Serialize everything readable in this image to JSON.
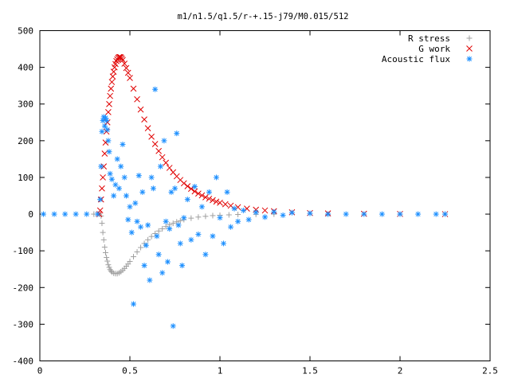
{
  "chart_data": {
    "type": "scatter",
    "title": "m1/n1.5/q1.5/r-+.15-j79/M0.015/512",
    "xlabel": "",
    "ylabel": "",
    "xlim": [
      0,
      2.5
    ],
    "ylim": [
      -400,
      500
    ],
    "xticks": [
      0,
      0.5,
      1,
      1.5,
      2,
      2.5
    ],
    "yticks": [
      -400,
      -300,
      -200,
      -100,
      0,
      100,
      200,
      300,
      400,
      500
    ],
    "xtick_labels": [
      "0",
      "0.5",
      "1",
      "1.5",
      "2",
      "2.5"
    ],
    "ytick_labels": [
      "-400",
      "-300",
      "-200",
      "-100",
      "0",
      "100",
      "200",
      "300",
      "400",
      "500"
    ],
    "grid": false,
    "legend_position": "top-right",
    "series": [
      {
        "name": "R stress",
        "marker": "plus",
        "color": "#a0a0a0",
        "points": [
          [
            0.3,
            0
          ],
          [
            0.33,
            0
          ],
          [
            0.34,
            -5
          ],
          [
            0.345,
            -25
          ],
          [
            0.35,
            -50
          ],
          [
            0.355,
            -70
          ],
          [
            0.36,
            -90
          ],
          [
            0.365,
            -105
          ],
          [
            0.37,
            -118
          ],
          [
            0.375,
            -128
          ],
          [
            0.38,
            -138
          ],
          [
            0.385,
            -145
          ],
          [
            0.39,
            -151
          ],
          [
            0.395,
            -155
          ],
          [
            0.4,
            -158
          ],
          [
            0.41,
            -161
          ],
          [
            0.42,
            -162
          ],
          [
            0.43,
            -162
          ],
          [
            0.44,
            -160
          ],
          [
            0.45,
            -157
          ],
          [
            0.46,
            -153
          ],
          [
            0.47,
            -148
          ],
          [
            0.48,
            -142
          ],
          [
            0.49,
            -136
          ],
          [
            0.5,
            -129
          ],
          [
            0.52,
            -116
          ],
          [
            0.54,
            -103
          ],
          [
            0.56,
            -91
          ],
          [
            0.58,
            -80
          ],
          [
            0.6,
            -70
          ],
          [
            0.62,
            -61
          ],
          [
            0.64,
            -53
          ],
          [
            0.66,
            -46
          ],
          [
            0.68,
            -40
          ],
          [
            0.7,
            -34
          ],
          [
            0.72,
            -29
          ],
          [
            0.74,
            -25
          ],
          [
            0.76,
            -21
          ],
          [
            0.78,
            -18
          ],
          [
            0.8,
            -15
          ],
          [
            0.84,
            -11
          ],
          [
            0.88,
            -8
          ],
          [
            0.92,
            -6
          ],
          [
            0.96,
            -4
          ],
          [
            1.0,
            -3
          ],
          [
            1.05,
            -2
          ],
          [
            1.1,
            -1
          ],
          [
            1.2,
            -0.5
          ],
          [
            1.3,
            0
          ],
          [
            1.6,
            0
          ],
          [
            2.0,
            0
          ],
          [
            2.25,
            0
          ]
        ]
      },
      {
        "name": "G work",
        "marker": "cross",
        "color": "#e00000",
        "points": [
          [
            0.33,
            0
          ],
          [
            0.335,
            10
          ],
          [
            0.34,
            40
          ],
          [
            0.345,
            70
          ],
          [
            0.35,
            100
          ],
          [
            0.355,
            130
          ],
          [
            0.36,
            165
          ],
          [
            0.365,
            195
          ],
          [
            0.37,
            225
          ],
          [
            0.375,
            250
          ],
          [
            0.38,
            278
          ],
          [
            0.385,
            300
          ],
          [
            0.39,
            322
          ],
          [
            0.395,
            342
          ],
          [
            0.4,
            360
          ],
          [
            0.405,
            375
          ],
          [
            0.41,
            388
          ],
          [
            0.415,
            400
          ],
          [
            0.42,
            409
          ],
          [
            0.425,
            417
          ],
          [
            0.43,
            422
          ],
          [
            0.435,
            426
          ],
          [
            0.44,
            428
          ],
          [
            0.445,
            428
          ],
          [
            0.45,
            427
          ],
          [
            0.455,
            424
          ],
          [
            0.46,
            420
          ],
          [
            0.47,
            410
          ],
          [
            0.48,
            398
          ],
          [
            0.49,
            385
          ],
          [
            0.5,
            371
          ],
          [
            0.52,
            342
          ],
          [
            0.54,
            313
          ],
          [
            0.56,
            285
          ],
          [
            0.58,
            258
          ],
          [
            0.6,
            234
          ],
          [
            0.62,
            211
          ],
          [
            0.64,
            191
          ],
          [
            0.66,
            172
          ],
          [
            0.68,
            155
          ],
          [
            0.7,
            140
          ],
          [
            0.72,
            126
          ],
          [
            0.74,
            114
          ],
          [
            0.76,
            103
          ],
          [
            0.78,
            93
          ],
          [
            0.8,
            84
          ],
          [
            0.82,
            76
          ],
          [
            0.84,
            69
          ],
          [
            0.86,
            62
          ],
          [
            0.88,
            56
          ],
          [
            0.9,
            51
          ],
          [
            0.92,
            46
          ],
          [
            0.94,
            42
          ],
          [
            0.96,
            38
          ],
          [
            0.98,
            34
          ],
          [
            1.0,
            31
          ],
          [
            1.03,
            27
          ],
          [
            1.06,
            23
          ],
          [
            1.1,
            19
          ],
          [
            1.15,
            15
          ],
          [
            1.2,
            12
          ],
          [
            1.25,
            10
          ],
          [
            1.3,
            8
          ],
          [
            1.4,
            5
          ],
          [
            1.5,
            3
          ],
          [
            1.6,
            2
          ],
          [
            1.8,
            1
          ],
          [
            2.0,
            0.5
          ],
          [
            2.25,
            0
          ]
        ]
      },
      {
        "name": "Acoustic flux",
        "marker": "star",
        "color": "#1e90ff",
        "points": [
          [
            0.02,
            0
          ],
          [
            0.08,
            0
          ],
          [
            0.14,
            0
          ],
          [
            0.2,
            0
          ],
          [
            0.26,
            0
          ],
          [
            0.32,
            0
          ],
          [
            0.335,
            40
          ],
          [
            0.34,
            130
          ],
          [
            0.345,
            225
          ],
          [
            0.35,
            255
          ],
          [
            0.355,
            265
          ],
          [
            0.36,
            240
          ],
          [
            0.365,
            262
          ],
          [
            0.37,
            255
          ],
          [
            0.375,
            230
          ],
          [
            0.38,
            200
          ],
          [
            0.385,
            170
          ],
          [
            0.39,
            110
          ],
          [
            0.4,
            95
          ],
          [
            0.41,
            50
          ],
          [
            0.42,
            80
          ],
          [
            0.43,
            150
          ],
          [
            0.44,
            70
          ],
          [
            0.45,
            130
          ],
          [
            0.46,
            190
          ],
          [
            0.47,
            100
          ],
          [
            0.48,
            50
          ],
          [
            0.49,
            -15
          ],
          [
            0.5,
            20
          ],
          [
            0.51,
            -50
          ],
          [
            0.52,
            -245
          ],
          [
            0.53,
            30
          ],
          [
            0.54,
            -20
          ],
          [
            0.55,
            105
          ],
          [
            0.56,
            -35
          ],
          [
            0.57,
            60
          ],
          [
            0.58,
            -140
          ],
          [
            0.59,
            -85
          ],
          [
            0.6,
            -30
          ],
          [
            0.61,
            -180
          ],
          [
            0.62,
            100
          ],
          [
            0.63,
            70
          ],
          [
            0.64,
            340
          ],
          [
            0.65,
            -60
          ],
          [
            0.66,
            -110
          ],
          [
            0.67,
            130
          ],
          [
            0.68,
            -160
          ],
          [
            0.69,
            200
          ],
          [
            0.7,
            -20
          ],
          [
            0.71,
            -130
          ],
          [
            0.72,
            -40
          ],
          [
            0.73,
            60
          ],
          [
            0.74,
            -305
          ],
          [
            0.75,
            70
          ],
          [
            0.76,
            220
          ],
          [
            0.77,
            -30
          ],
          [
            0.78,
            -80
          ],
          [
            0.79,
            -140
          ],
          [
            0.8,
            -10
          ],
          [
            0.82,
            40
          ],
          [
            0.84,
            -70
          ],
          [
            0.86,
            75
          ],
          [
            0.88,
            -55
          ],
          [
            0.9,
            20
          ],
          [
            0.92,
            -110
          ],
          [
            0.94,
            60
          ],
          [
            0.96,
            -60
          ],
          [
            0.98,
            100
          ],
          [
            1.0,
            -10
          ],
          [
            1.02,
            -80
          ],
          [
            1.04,
            60
          ],
          [
            1.06,
            -35
          ],
          [
            1.08,
            15
          ],
          [
            1.1,
            -20
          ],
          [
            1.13,
            10
          ],
          [
            1.16,
            -15
          ],
          [
            1.2,
            5
          ],
          [
            1.25,
            -8
          ],
          [
            1.3,
            6
          ],
          [
            1.35,
            -3
          ],
          [
            1.4,
            4
          ],
          [
            1.5,
            2
          ],
          [
            1.6,
            0
          ],
          [
            1.7,
            0
          ],
          [
            1.8,
            0
          ],
          [
            1.9,
            0
          ],
          [
            2.0,
            0
          ],
          [
            2.1,
            0
          ],
          [
            2.2,
            0
          ],
          [
            2.25,
            0
          ]
        ]
      }
    ]
  }
}
